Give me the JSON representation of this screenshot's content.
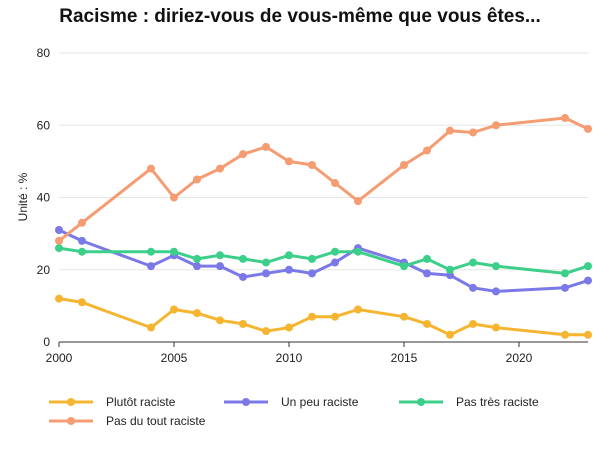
{
  "chart_data": {
    "type": "line",
    "title": "Racisme : diriez-vous de vous-même que vous êtes...",
    "xlabel": "",
    "ylabel": "Unité : %",
    "xlim": [
      2000,
      2023
    ],
    "ylim": [
      0,
      80
    ],
    "x_ticks": [
      "2000",
      "2005",
      "2010",
      "2015",
      "2020"
    ],
    "y_ticks": [
      "0",
      "20",
      "40",
      "60",
      "80"
    ],
    "grid": true,
    "legend_position": "bottom",
    "x": [
      2000,
      2001,
      2004,
      2005,
      2006,
      2007,
      2008,
      2009,
      2010,
      2011,
      2012,
      2013,
      2015,
      2016,
      2017,
      2018,
      2019,
      2022,
      2023
    ],
    "series": [
      {
        "name": "Plutôt raciste",
        "color": "#f5b531",
        "values": [
          12,
          11,
          4,
          9,
          8,
          6,
          5,
          3,
          4,
          7,
          7,
          9,
          7,
          5,
          2,
          5,
          4,
          2,
          2
        ]
      },
      {
        "name": "Un peu raciste",
        "color": "#7b78e8",
        "values": [
          31,
          28,
          21,
          24,
          21,
          21,
          18,
          19,
          20,
          19,
          22,
          26,
          22,
          19,
          18.5,
          15,
          14,
          15,
          17
        ]
      },
      {
        "name": "Pas très raciste",
        "color": "#3ccf8a",
        "values": [
          26,
          25,
          25,
          25,
          23,
          24,
          23,
          22,
          24,
          23,
          25,
          25,
          21,
          23,
          20,
          22,
          21,
          19,
          21
        ]
      },
      {
        "name": "Pas du tout raciste",
        "color": "#f59c72",
        "values": [
          28,
          33,
          48,
          40,
          45,
          48,
          52,
          54,
          50,
          49,
          44,
          39,
          49,
          53,
          58.5,
          58,
          60,
          62,
          59
        ]
      }
    ]
  }
}
